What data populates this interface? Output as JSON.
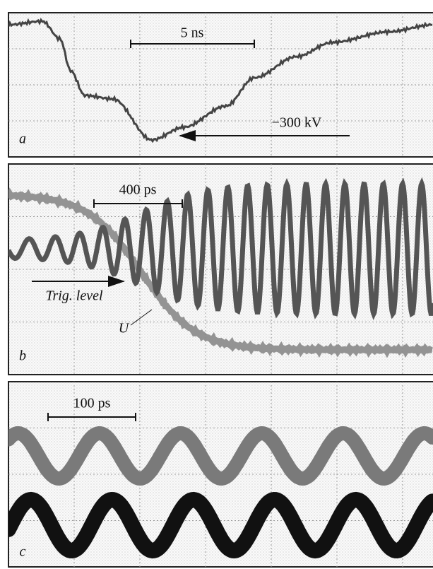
{
  "panels": [
    {
      "letter": "a",
      "scale_label": "5 ns",
      "annotations": [
        "−300 kV"
      ]
    },
    {
      "letter": "b",
      "scale_label": "400 ps",
      "annotations": [
        "Trig. level",
        "U"
      ]
    },
    {
      "letter": "c",
      "scale_label": "100 ps"
    }
  ]
}
